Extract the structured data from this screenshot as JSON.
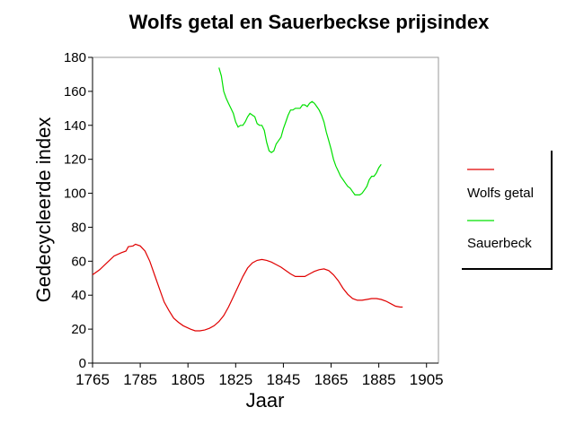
{
  "chart_data": {
    "type": "line",
    "title": "Wolfs getal en Sauerbeckse prijsindex",
    "xlabel": "Jaar",
    "ylabel": "Gedecycleerde index",
    "xlim": [
      1765,
      1910
    ],
    "ylim": [
      0,
      180
    ],
    "xticks": [
      1765,
      1785,
      1805,
      1825,
      1845,
      1865,
      1885,
      1905
    ],
    "yticks": [
      0,
      20,
      40,
      60,
      80,
      100,
      120,
      140,
      160,
      180
    ],
    "grid": false,
    "legend_position": "right",
    "series": [
      {
        "name": "Wolfs getal",
        "color": "#e00000",
        "points": [
          [
            1765,
            52
          ],
          [
            1768,
            55
          ],
          [
            1771,
            59
          ],
          [
            1774,
            63
          ],
          [
            1777,
            65
          ],
          [
            1779,
            66
          ],
          [
            1780,
            68.5
          ],
          [
            1782,
            69
          ],
          [
            1783,
            70
          ],
          [
            1785,
            69
          ],
          [
            1787,
            66
          ],
          [
            1789,
            60
          ],
          [
            1791,
            52
          ],
          [
            1793,
            44
          ],
          [
            1795,
            36
          ],
          [
            1797,
            31
          ],
          [
            1799,
            26.5
          ],
          [
            1801,
            24
          ],
          [
            1803,
            22
          ],
          [
            1806,
            20
          ],
          [
            1808,
            19
          ],
          [
            1810,
            19
          ],
          [
            1812,
            19.5
          ],
          [
            1814,
            20.5
          ],
          [
            1816,
            22
          ],
          [
            1818,
            24.5
          ],
          [
            1820,
            28
          ],
          [
            1822,
            33
          ],
          [
            1824,
            39
          ],
          [
            1826,
            45
          ],
          [
            1828,
            51
          ],
          [
            1830,
            56
          ],
          [
            1832,
            59
          ],
          [
            1834,
            60.5
          ],
          [
            1836,
            61
          ],
          [
            1838,
            60.5
          ],
          [
            1840,
            59.5
          ],
          [
            1842,
            58
          ],
          [
            1844,
            56.5
          ],
          [
            1846,
            54.5
          ],
          [
            1848,
            52.5
          ],
          [
            1850,
            51
          ],
          [
            1852,
            51
          ],
          [
            1854,
            51
          ],
          [
            1856,
            52.5
          ],
          [
            1858,
            54
          ],
          [
            1860,
            55
          ],
          [
            1862,
            55.5
          ],
          [
            1864,
            54.5
          ],
          [
            1866,
            52
          ],
          [
            1868,
            48.5
          ],
          [
            1870,
            44
          ],
          [
            1872,
            40.5
          ],
          [
            1874,
            38
          ],
          [
            1876,
            37
          ],
          [
            1878,
            37
          ],
          [
            1880,
            37.5
          ],
          [
            1882,
            38
          ],
          [
            1884,
            38
          ],
          [
            1886,
            37.5
          ],
          [
            1888,
            36.5
          ],
          [
            1890,
            35
          ],
          [
            1892,
            33.5
          ],
          [
            1894,
            33
          ],
          [
            1895,
            33
          ]
        ]
      },
      {
        "name": "Sauerbeck",
        "color": "#00e000",
        "points": [
          [
            1818,
            174
          ],
          [
            1819,
            169
          ],
          [
            1820,
            160
          ],
          [
            1821,
            156
          ],
          [
            1822,
            153
          ],
          [
            1823,
            150
          ],
          [
            1824,
            147
          ],
          [
            1825,
            142
          ],
          [
            1826,
            139
          ],
          [
            1827,
            140
          ],
          [
            1828,
            140
          ],
          [
            1829,
            142
          ],
          [
            1830,
            145
          ],
          [
            1831,
            147
          ],
          [
            1832,
            146
          ],
          [
            1833,
            145
          ],
          [
            1834,
            141
          ],
          [
            1835,
            140
          ],
          [
            1836,
            140
          ],
          [
            1837,
            137
          ],
          [
            1838,
            130
          ],
          [
            1839,
            125
          ],
          [
            1840,
            124
          ],
          [
            1841,
            125
          ],
          [
            1842,
            129
          ],
          [
            1843,
            131
          ],
          [
            1844,
            133
          ],
          [
            1845,
            138
          ],
          [
            1846,
            142
          ],
          [
            1847,
            146
          ],
          [
            1848,
            149
          ],
          [
            1849,
            149
          ],
          [
            1850,
            150
          ],
          [
            1851,
            150
          ],
          [
            1852,
            150
          ],
          [
            1853,
            152
          ],
          [
            1854,
            152
          ],
          [
            1855,
            151
          ],
          [
            1856,
            153
          ],
          [
            1857,
            154
          ],
          [
            1858,
            153
          ],
          [
            1859,
            151
          ],
          [
            1860,
            149
          ],
          [
            1861,
            146
          ],
          [
            1862,
            142
          ],
          [
            1863,
            136
          ],
          [
            1864,
            131
          ],
          [
            1865,
            126
          ],
          [
            1866,
            120
          ],
          [
            1867,
            116
          ],
          [
            1868,
            113
          ],
          [
            1869,
            110
          ],
          [
            1870,
            108
          ],
          [
            1871,
            106
          ],
          [
            1872,
            104
          ],
          [
            1873,
            103
          ],
          [
            1874,
            101
          ],
          [
            1875,
            99
          ],
          [
            1876,
            99
          ],
          [
            1877,
            99
          ],
          [
            1878,
            100
          ],
          [
            1879,
            102
          ],
          [
            1880,
            104
          ],
          [
            1881,
            108
          ],
          [
            1882,
            110
          ],
          [
            1883,
            110
          ],
          [
            1884,
            112
          ],
          [
            1885,
            115
          ],
          [
            1886,
            117
          ]
        ]
      }
    ]
  }
}
